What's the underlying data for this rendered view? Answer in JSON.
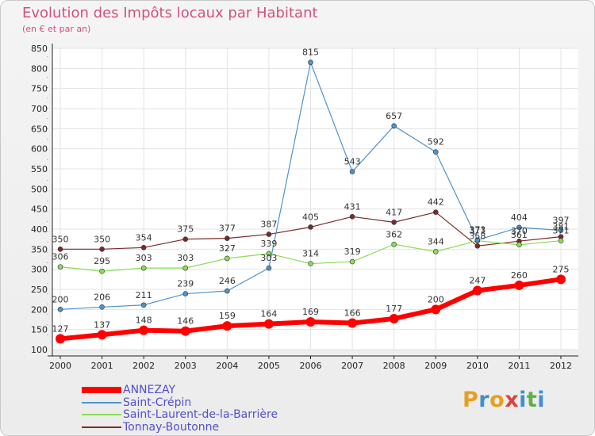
{
  "title": "Evolution des Impôts locaux par Habitant",
  "subtitle": "(en € et par an)",
  "logo": {
    "text": "Proxiti",
    "letters": [
      "P",
      "r",
      "o",
      "x",
      "i",
      "t",
      "i"
    ],
    "colors": [
      "#e8a020",
      "#4090d0",
      "#e8a020",
      "#e04040",
      "#4090d0",
      "#60b040",
      "#4090d0"
    ]
  },
  "colors": {
    "title": "#d2527a",
    "ANNEZAY": "#ff0000",
    "Saint-Crépin": "#4f93cc",
    "Saint-Laurent-de-la-Barrière": "#88dd55",
    "Tonnay-Boutonne": "#7a2a2a"
  },
  "chart_data": {
    "type": "line",
    "title": "Evolution des Impôts locaux par Habitant",
    "subtitle": "(en € et par an)",
    "x": [
      2000,
      2001,
      2002,
      2003,
      2004,
      2005,
      2006,
      2007,
      2008,
      2009,
      2010,
      2011,
      2012
    ],
    "y_ticks": [
      100,
      150,
      200,
      250,
      300,
      350,
      400,
      450,
      500,
      550,
      600,
      650,
      700,
      750,
      800,
      850
    ],
    "ylim": [
      100,
      850
    ],
    "grid": true,
    "legend_position": "bottom-left",
    "series": [
      {
        "name": "ANNEZAY",
        "values": [
          127,
          137,
          148,
          146,
          159,
          164,
          169,
          166,
          177,
          200,
          247,
          260,
          275
        ]
      },
      {
        "name": "Saint-Crépin",
        "values": [
          200,
          206,
          211,
          239,
          246,
          303,
          815,
          543,
          657,
          592,
          373,
          404,
          397
        ]
      },
      {
        "name": "Saint-Laurent-de-la-Barrière",
        "values": [
          306,
          295,
          303,
          303,
          327,
          339,
          314,
          319,
          362,
          344,
          371,
          361,
          371
        ]
      },
      {
        "name": "Tonnay-Boutonne",
        "values": [
          350,
          350,
          354,
          375,
          377,
          387,
          405,
          431,
          417,
          442,
          358,
          370,
          381
        ]
      }
    ]
  }
}
